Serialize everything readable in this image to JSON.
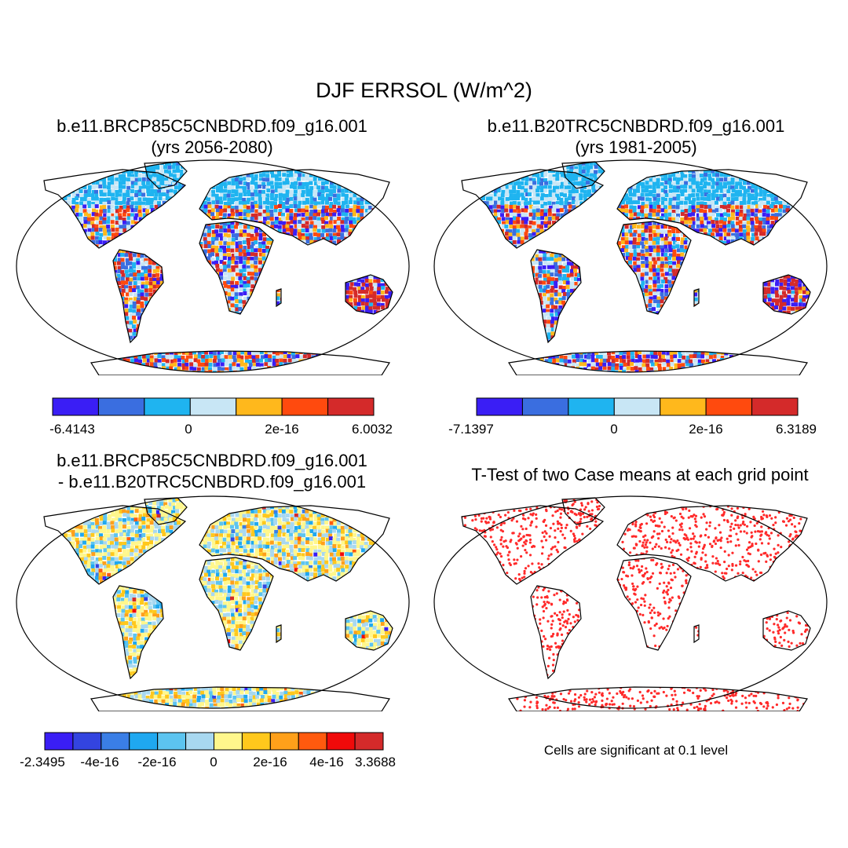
{
  "title": "DJF ERRSOL (W/m^2)",
  "panels": [
    {
      "title_line1": "b.e11.BRCP85C5CNBDRD.f09_g16.001",
      "title_line2": "(yrs 2056-2080)",
      "colorbar": {
        "colors": [
          "#3a1ef5",
          "#3a6ee0",
          "#1fb4f0",
          "#c8e6f5",
          "#ffb81c",
          "#ff4a0e",
          "#d42a2a"
        ],
        "labels": [
          "-6.4143",
          "0",
          "2e-16",
          "6.0032"
        ]
      }
    },
    {
      "title_line1": "b.e11.B20TRC5CNBDRD.f09_g16.001",
      "title_line2": "(yrs 1981-2005)",
      "colorbar": {
        "colors": [
          "#3a1ef5",
          "#3a6ee0",
          "#1fb4f0",
          "#c8e6f5",
          "#ffb81c",
          "#ff4a0e",
          "#d42a2a"
        ],
        "labels": [
          "-7.1397",
          "0",
          "2e-16",
          "6.3189"
        ]
      }
    },
    {
      "title_line1": "b.e11.BRCP85C5CNBDRD.f09_g16.001",
      "title_line2": "- b.e11.B20TRC5CNBDRD.f09_g16.001",
      "colorbar": {
        "colors": [
          "#3a1ef5",
          "#3344e0",
          "#3a7ee6",
          "#1fa8f0",
          "#5cc4f0",
          "#a8d8f0",
          "#fff78c",
          "#ffc81c",
          "#ffa01a",
          "#ff5a0e",
          "#f00a0a",
          "#d42a2a"
        ],
        "labels": [
          "-2.3495",
          "-4e-16",
          "-2e-16",
          "0",
          "2e-16",
          "4e-16",
          "3.3688"
        ]
      }
    },
    {
      "title_line1": "T-Test of two Case means at each grid point",
      "note": "Cells are significant at 0.1 level"
    }
  ]
}
